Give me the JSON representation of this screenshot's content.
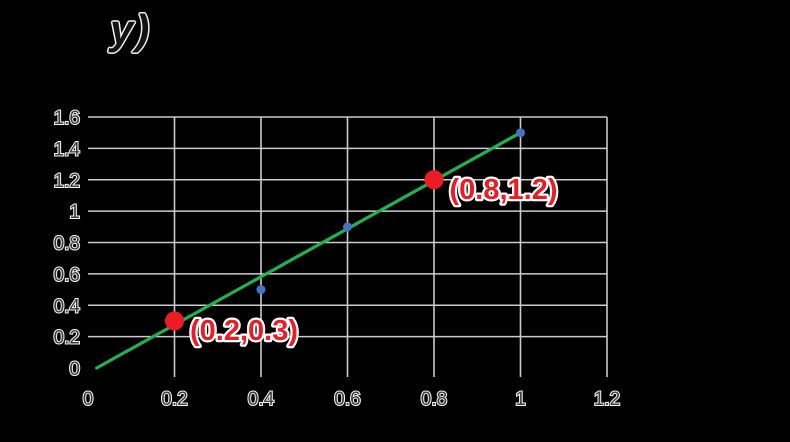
{
  "canvas": {
    "background": "#000000"
  },
  "title_fragment": {
    "text": "y)"
  },
  "chart_data": {
    "type": "scatter",
    "title": "",
    "xlabel": "",
    "ylabel": "",
    "xlim": [
      0,
      1.2
    ],
    "ylim": [
      0,
      1.6
    ],
    "grid": true,
    "legend": "none",
    "x_tick_values": [
      0,
      0.2,
      0.4,
      0.6,
      0.8,
      1,
      1.2
    ],
    "x_tick_labels": [
      "0",
      "0.2",
      "0.4",
      "0.6",
      "0.8",
      "1",
      "1.2"
    ],
    "y_tick_values": [
      0,
      0.2,
      0.4,
      0.6,
      0.8,
      1,
      1.2,
      1.4,
      1.6
    ],
    "y_tick_labels": [
      "0",
      "0.2",
      "0.4",
      "0.6",
      "0.8",
      "1",
      "1.2",
      "1.4",
      "1.6"
    ],
    "gridline_color": "#cbcbcb",
    "tick_label_color": "#3c3c3c",
    "series": [
      {
        "name": "trendline",
        "type": "line",
        "line_color": "#22b14c",
        "points": [
          [
            0.02,
            0.0
          ],
          [
            1.0,
            1.5
          ]
        ]
      },
      {
        "name": "observed-points",
        "type": "scatter",
        "marker_color": "#4472c4",
        "marker_radius": 4.5,
        "points": [
          [
            0.4,
            0.5
          ],
          [
            0.6,
            0.9
          ],
          [
            1.0,
            1.5
          ]
        ]
      },
      {
        "name": "highlighted-points",
        "type": "scatter",
        "marker_color": "#ed1c24",
        "marker_radius": 9.5,
        "points": [
          [
            0.2,
            0.3
          ],
          [
            0.8,
            1.2
          ]
        ],
        "point_labels": [
          "(0.2,0.3)",
          "(0.8,1.2)"
        ],
        "label_color": "#ed1c24"
      }
    ]
  }
}
